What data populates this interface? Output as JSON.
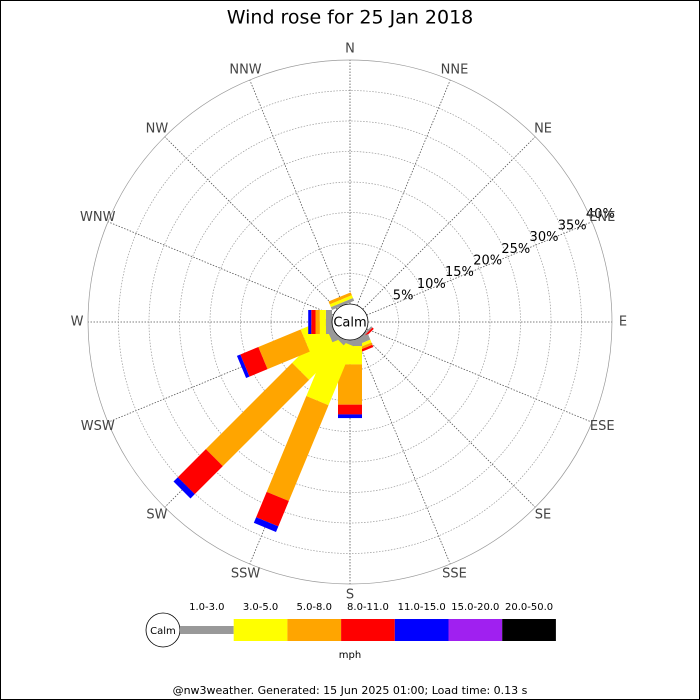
{
  "chart_data": {
    "type": "windrose",
    "title": "Wind rose for 25 Jan 2018",
    "categories": [
      "N",
      "NNE",
      "NE",
      "ENE",
      "E",
      "ESE",
      "SE",
      "SSE",
      "S",
      "SSW",
      "SW",
      "WSW",
      "W",
      "WNW",
      "NW",
      "NNW"
    ],
    "calm_label": "Calm",
    "legend_title": "mph",
    "ylim": [
      0,
      40
    ],
    "yticks": [
      {
        "value": 5,
        "label": "5%"
      },
      {
        "value": 10,
        "label": "10%"
      },
      {
        "value": 15,
        "label": "15%"
      },
      {
        "value": 20,
        "label": "20%"
      },
      {
        "value": 25,
        "label": "25%"
      },
      {
        "value": 30,
        "label": "30%"
      },
      {
        "value": 35,
        "label": "35%"
      },
      {
        "value": 40,
        "label": "40%"
      }
    ],
    "series": [
      {
        "name": "1.0-3.0",
        "color": "#999999",
        "values": [
          0,
          0,
          0,
          0,
          0,
          0,
          0.3,
          1,
          1,
          0.5,
          0.5,
          1,
          1,
          0,
          0,
          0.5
        ]
      },
      {
        "name": "3.0-5.0",
        "color": "#ffff00",
        "values": [
          0,
          0,
          0,
          0,
          0,
          0,
          0,
          0.5,
          3,
          10.5,
          8,
          4,
          1,
          0,
          0,
          0.5
        ]
      },
      {
        "name": "5.0-8.0",
        "color": "#ffa500",
        "values": [
          0,
          0,
          0,
          0,
          0,
          0,
          0,
          0.4,
          6.6,
          17,
          20,
          7.5,
          0.7,
          0,
          0,
          0.5
        ]
      },
      {
        "name": "8.0-11.0",
        "color": "#ff0000",
        "values": [
          0,
          0,
          0,
          0,
          0,
          0,
          0.3,
          0.4,
          1.6,
          4.5,
          6.5,
          3.2,
          0.7,
          0,
          0,
          0
        ]
      },
      {
        "name": "11.0-15.0",
        "color": "#0000ff",
        "values": [
          0,
          0,
          0,
          0,
          0,
          0,
          0,
          0,
          0.6,
          1,
          1,
          0.6,
          0.5,
          0,
          0,
          0
        ]
      },
      {
        "name": "15.0-20.0",
        "color": "#a020f0",
        "values": [
          0,
          0,
          0,
          0,
          0,
          0,
          0,
          0,
          0,
          0,
          0,
          0,
          0,
          0,
          0,
          0
        ]
      },
      {
        "name": "20.0-50.0",
        "color": "#000000",
        "values": [
          0,
          0,
          0,
          0,
          0,
          0,
          0,
          0,
          0,
          0,
          0,
          0,
          0,
          0,
          0,
          0
        ]
      }
    ]
  },
  "footer": "@nw3weather. Generated: 15 Jun 2025 01:00; Load time: 0.13 s"
}
